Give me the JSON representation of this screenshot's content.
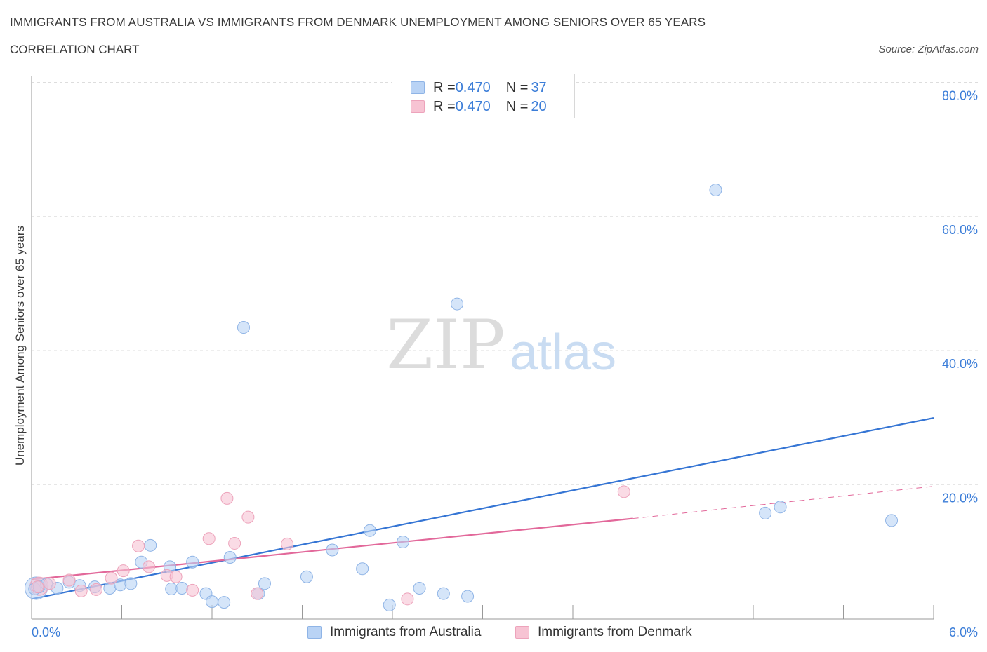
{
  "header": {
    "title": "IMMIGRANTS FROM AUSTRALIA VS IMMIGRANTS FROM DENMARK UNEMPLOYMENT AMONG SENIORS OVER 65 YEARS",
    "subtitle": "CORRELATION CHART",
    "source": "Source: ZipAtlas.com"
  },
  "watermark": {
    "zip": "ZIP",
    "atlas": "atlas"
  },
  "legend_top": [
    {
      "r_label": "R = ",
      "r_value": "0.470",
      "n_label": "N = ",
      "n_value": "37"
    },
    {
      "r_label": "R = ",
      "r_value": "0.470",
      "n_label": "N = ",
      "n_value": "20"
    }
  ],
  "legend_bottom": [
    {
      "label": "Immigrants from Australia"
    },
    {
      "label": "Immigrants from Denmark"
    }
  ],
  "colors": {
    "australia_fill": "#b9d3f5",
    "australia_stroke": "#8fb4e6",
    "australia_line": "#3575d4",
    "denmark_fill": "#f7c3d3",
    "denmark_stroke": "#eda3bb",
    "denmark_line": "#e2689a",
    "axis_label": "#3b7dd8",
    "grid": "#dddddd"
  },
  "chart_data": {
    "type": "scatter",
    "title": "IMMIGRANTS FROM AUSTRALIA VS IMMIGRANTS FROM DENMARK UNEMPLOYMENT AMONG SENIORS OVER 65 YEARS",
    "xlabel": "",
    "ylabel": "Unemployment Among Seniors over 65 years",
    "xlim": [
      0,
      6
    ],
    "ylim": [
      0,
      80
    ],
    "x_tick_labels": [
      "0.0%",
      "6.0%"
    ],
    "y_ticks": [
      20,
      40,
      60,
      80
    ],
    "y_tick_labels": [
      "20.0%",
      "40.0%",
      "60.0%",
      "80.0%"
    ],
    "grid": true,
    "legend_position": "top-center",
    "series": [
      {
        "name": "Immigrants from Australia",
        "points": [
          [
            0.02,
            4.5
          ],
          [
            0.05,
            4.8
          ],
          [
            0.1,
            5.2
          ],
          [
            0.17,
            4.6
          ],
          [
            0.25,
            5.5
          ],
          [
            0.32,
            5.0
          ],
          [
            0.42,
            4.8
          ],
          [
            0.52,
            4.6
          ],
          [
            0.59,
            5.1
          ],
          [
            0.66,
            5.3
          ],
          [
            0.73,
            8.5
          ],
          [
            0.79,
            11.0
          ],
          [
            0.92,
            7.8
          ],
          [
            0.93,
            4.5
          ],
          [
            1.0,
            4.6
          ],
          [
            1.07,
            8.5
          ],
          [
            1.16,
            3.8
          ],
          [
            1.2,
            2.6
          ],
          [
            1.28,
            2.5
          ],
          [
            1.32,
            9.2
          ],
          [
            1.41,
            43.5
          ],
          [
            1.51,
            3.8
          ],
          [
            1.55,
            5.3
          ],
          [
            1.83,
            6.3
          ],
          [
            2.0,
            10.3
          ],
          [
            2.2,
            7.5
          ],
          [
            2.25,
            13.2
          ],
          [
            2.38,
            2.1
          ],
          [
            2.47,
            11.5
          ],
          [
            2.58,
            4.6
          ],
          [
            2.74,
            3.8
          ],
          [
            2.83,
            47.0
          ],
          [
            2.9,
            3.4
          ],
          [
            4.55,
            64.0
          ],
          [
            4.88,
            15.8
          ],
          [
            4.98,
            16.7
          ],
          [
            5.72,
            14.7
          ]
        ]
      },
      {
        "name": "Immigrants from Denmark",
        "points": [
          [
            0.04,
            4.8
          ],
          [
            0.12,
            5.3
          ],
          [
            0.25,
            5.8
          ],
          [
            0.33,
            4.2
          ],
          [
            0.43,
            4.4
          ],
          [
            0.53,
            6.1
          ],
          [
            0.61,
            7.2
          ],
          [
            0.71,
            10.9
          ],
          [
            0.78,
            7.8
          ],
          [
            0.9,
            6.5
          ],
          [
            0.96,
            6.3
          ],
          [
            1.07,
            4.3
          ],
          [
            1.18,
            12.0
          ],
          [
            1.3,
            18.0
          ],
          [
            1.35,
            11.3
          ],
          [
            1.44,
            15.2
          ],
          [
            1.5,
            3.8
          ],
          [
            1.7,
            11.2
          ],
          [
            2.5,
            3.0
          ],
          [
            3.94,
            19.0
          ]
        ]
      }
    ],
    "trendlines": [
      {
        "series": "Immigrants from Australia",
        "x": [
          0,
          6
        ],
        "y": [
          3.0,
          30.0
        ],
        "style": "solid"
      },
      {
        "series": "Immigrants from Denmark",
        "x": [
          0,
          4.0
        ],
        "y": [
          5.9,
          15.0
        ],
        "style": "solid"
      },
      {
        "series": "Immigrants from Denmark",
        "x": [
          4.0,
          6
        ],
        "y": [
          15.0,
          19.8
        ],
        "style": "dashed"
      }
    ]
  }
}
